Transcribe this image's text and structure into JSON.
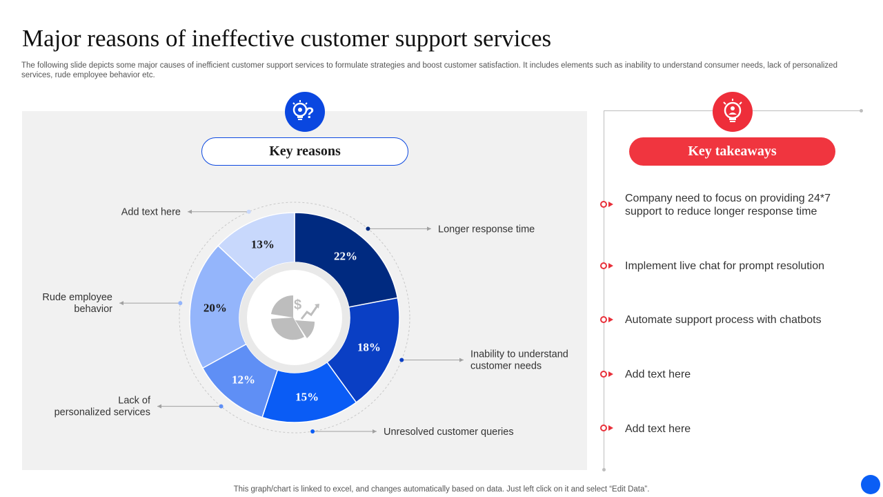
{
  "page": {
    "title": "Major reasons of ineffective customer support services",
    "subtitle": "The following slide depicts some major causes of inefficient customer support services to formulate strategies and boost customer satisfaction. It includes elements such as inability to understand consumer needs, lack of personalized services, rude employee behavior etc.",
    "footer": "This graph/chart is linked to excel, and changes automatically based on data. Just left click on it and select “Edit Data”."
  },
  "key_reasons": {
    "heading": "Key reasons",
    "icon": "lightbulb-gear-question-icon",
    "center_icon": "pie-chart-dollar-growth-icon"
  },
  "key_takeaways": {
    "heading": "Key takeaways",
    "icon": "lightbulb-brain-user-icon",
    "items": [
      "Company need to focus on providing 24*7 support to reduce longer response time",
      "Implement live chat for prompt resolution",
      "Automate support process with chatbots",
      "Add text here",
      "Add text here"
    ]
  },
  "colors": {
    "accent_blue": "#0a47e0",
    "accent_red": "#f0353f",
    "panel_bg": "#f1f1f1"
  },
  "chart_data": {
    "type": "pie",
    "title": "",
    "categories": [
      "Longer response time",
      "Inability to understand customer needs",
      "Unresolved customer queries",
      "Lack of personalized services",
      "Rude employee behavior",
      "Add text here"
    ],
    "values": [
      22,
      18,
      15,
      12,
      20,
      13
    ],
    "value_labels": [
      "22%",
      "18%",
      "15%",
      "12%",
      "20%",
      "13%"
    ],
    "slice_colors": [
      "#002a80",
      "#0a3fc4",
      "#0a5cf5",
      "#5f8ff5",
      "#94b5fb",
      "#c8d8fc"
    ],
    "label_colors": [
      "#ffffff",
      "#ffffff",
      "#ffffff",
      "#ffffff",
      "#1a1a1a",
      "#1a1a1a"
    ],
    "label_display": [
      [
        "Longer response time"
      ],
      [
        "Inability to understand",
        "customer needs"
      ],
      [
        "Unresolved customer queries"
      ],
      [
        "Lack of",
        "personalized services"
      ],
      [
        "Rude employee",
        "behavior"
      ],
      [
        "Add text here"
      ]
    ],
    "donut": true,
    "legend": "none"
  }
}
